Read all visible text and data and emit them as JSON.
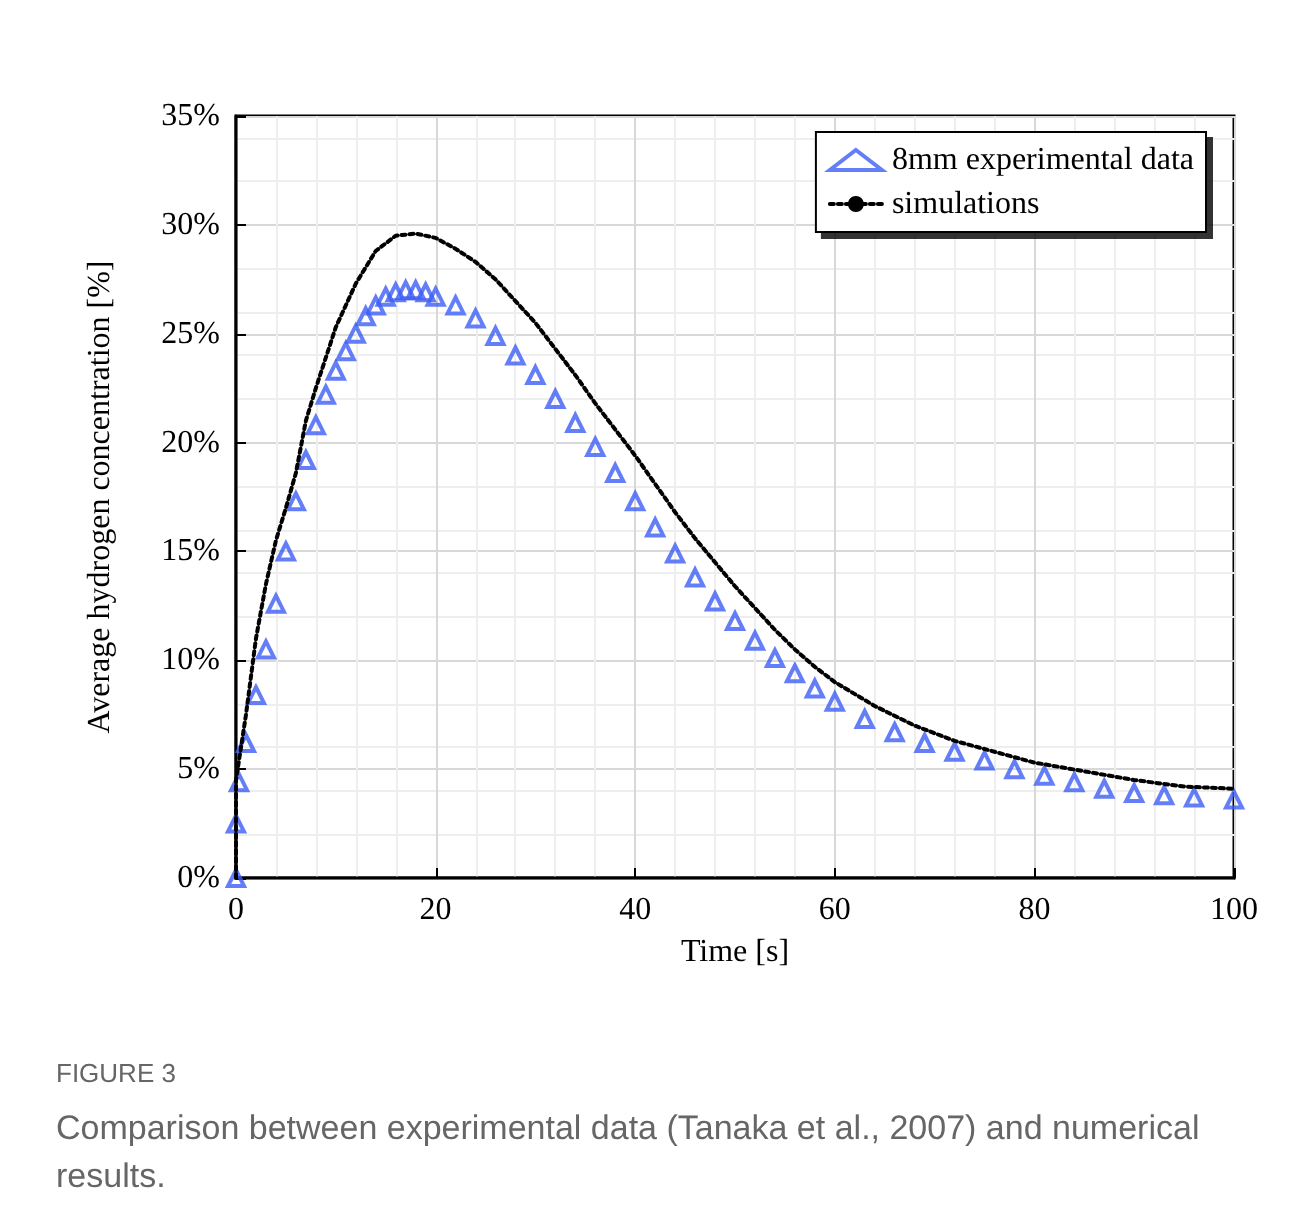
{
  "chart_data": {
    "type": "scatter",
    "xlabel": "Time [s]",
    "ylabel": "Average hydrogen concentration [%]",
    "xlim": [
      0,
      100
    ],
    "xticks": [
      0,
      20,
      40,
      60,
      80,
      100
    ],
    "ylim": [
      0,
      35
    ],
    "yticks": [
      {
        "value": 0,
        "label": "0%"
      },
      {
        "value": 5,
        "label": "5%"
      },
      {
        "value": 10,
        "label": "10%"
      },
      {
        "value": 15,
        "label": "15%"
      },
      {
        "value": 20,
        "label": "20%"
      },
      {
        "value": 25,
        "label": "25%"
      },
      {
        "value": 30,
        "label": "30%"
      },
      {
        "value": 35,
        "label": "35%"
      }
    ],
    "grid": true,
    "legend": "top right",
    "annotations": [
      "FIGURE 3",
      "Comparison between experimental data (Tanaka et al., 2007) and numerical results."
    ],
    "series": [
      {
        "name": "8mm experimental data",
        "marker": "triangle",
        "color": "#3d5ef5",
        "x": [
          0,
          0,
          0.3,
          1,
          2,
          3,
          4,
          5,
          6,
          7,
          8,
          9,
          10,
          11,
          12,
          13,
          14,
          15,
          16,
          17,
          18,
          19,
          20,
          22,
          24,
          26,
          28,
          30,
          32,
          34,
          36,
          38,
          40,
          42,
          44,
          46,
          48,
          50,
          52,
          54,
          56,
          58,
          60,
          63,
          66,
          69,
          72,
          75,
          78,
          81,
          84,
          87,
          90,
          93,
          96,
          100
        ],
        "values": [
          0,
          2.5,
          4.4,
          6.2,
          8.4,
          10.5,
          12.6,
          15,
          17.3,
          19.2,
          20.8,
          22.2,
          23.3,
          24.2,
          25,
          25.8,
          26.3,
          26.7,
          26.9,
          27,
          27,
          26.9,
          26.7,
          26.3,
          25.7,
          24.9,
          24,
          23.1,
          22,
          20.9,
          19.8,
          18.6,
          17.3,
          16.1,
          14.9,
          13.8,
          12.7,
          11.8,
          10.9,
          10.1,
          9.4,
          8.7,
          8.1,
          7.3,
          6.7,
          6.2,
          5.8,
          5.4,
          5,
          4.7,
          4.4,
          4.1,
          3.9,
          3.8,
          3.7,
          3.6
        ]
      },
      {
        "name": "simulations",
        "type": "line",
        "line_style": "dotted",
        "marker": "none",
        "color": "#000000",
        "x": [
          0,
          0,
          1,
          2,
          3,
          4,
          5,
          6,
          7,
          8,
          10,
          12,
          14,
          16,
          18,
          20,
          22,
          24,
          26,
          28,
          30,
          32,
          34,
          36,
          38,
          40,
          42,
          44,
          46,
          48,
          50,
          52,
          54,
          56,
          58,
          60,
          64,
          68,
          72,
          76,
          80,
          85,
          90,
          95,
          100
        ],
        "values": [
          0,
          4.5,
          7.5,
          11,
          13.5,
          15.5,
          17,
          18.6,
          21,
          22.5,
          25.3,
          27.3,
          28.8,
          29.5,
          29.6,
          29.4,
          28.9,
          28.3,
          27.5,
          26.5,
          25.5,
          24.3,
          23.1,
          21.8,
          20.6,
          19.4,
          18.1,
          16.8,
          15.6,
          14.5,
          13.4,
          12.4,
          11.4,
          10.5,
          9.7,
          9,
          7.9,
          7,
          6.3,
          5.8,
          5.3,
          4.9,
          4.5,
          4.2,
          4.1
        ]
      }
    ]
  }
}
